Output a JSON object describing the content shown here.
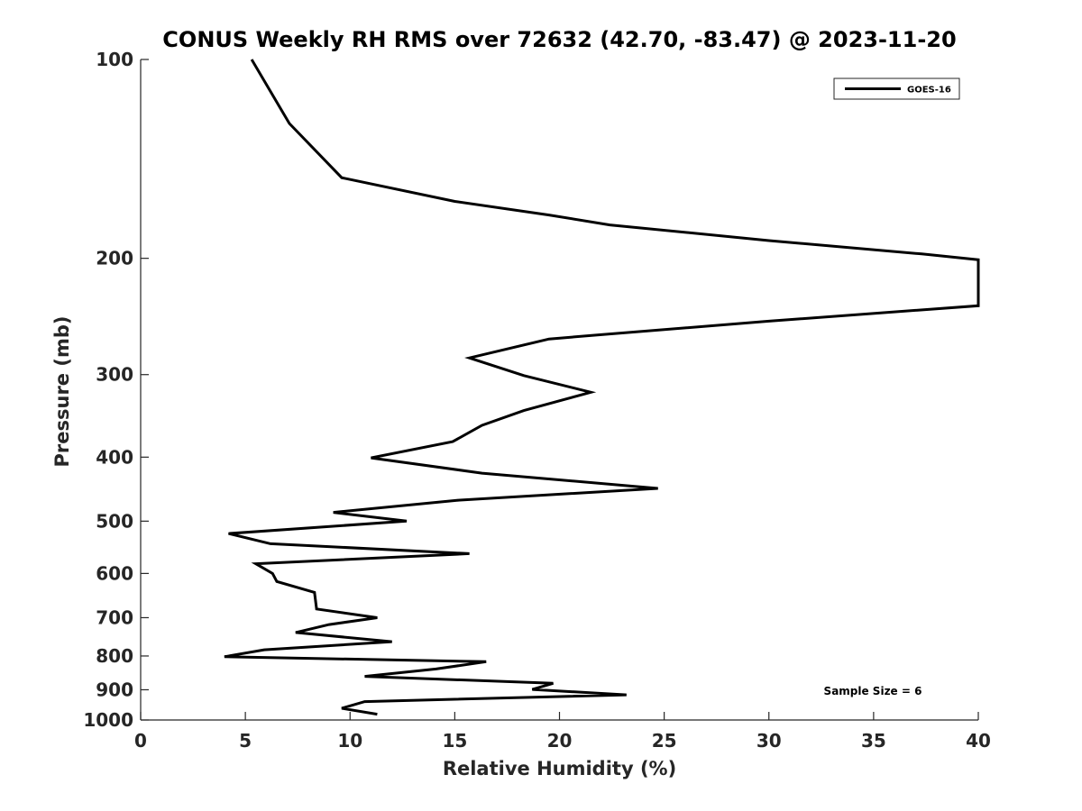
{
  "chart_data": {
    "type": "line",
    "title": "CONUS Weekly RH RMS over 72632 (42.70, -83.47) @ 2023-11-20",
    "xlabel": "Relative Humidity (%)",
    "ylabel": "Pressure (mb)",
    "xlim": [
      0,
      40
    ],
    "ylim": [
      100,
      1000
    ],
    "y_scale": "log",
    "y_reversed": true,
    "grid": false,
    "legend_position": "top-right",
    "x_ticks": [
      "0",
      "5",
      "10",
      "15",
      "20",
      "25",
      "30",
      "35",
      "40"
    ],
    "y_ticks": [
      "100",
      "200",
      "300",
      "400",
      "500",
      "600",
      "700",
      "800",
      "900",
      "1000"
    ],
    "series": [
      {
        "name": "GOES-16",
        "color": "#000000",
        "points": [
          [
            5.3,
            100
          ],
          [
            7.1,
            125
          ],
          [
            9.6,
            151
          ],
          [
            15,
            164
          ],
          [
            19.5,
            172
          ],
          [
            22.4,
            178
          ],
          [
            30,
            188
          ],
          [
            37.3,
            197
          ],
          [
            40,
            201
          ],
          [
            40,
            236
          ],
          [
            30,
            249
          ],
          [
            22,
            261
          ],
          [
            19.5,
            265
          ],
          [
            15.7,
            283
          ],
          [
            18.3,
            301
          ],
          [
            21.5,
            319
          ],
          [
            18.3,
            340
          ],
          [
            16.3,
            358
          ],
          [
            14.9,
            379
          ],
          [
            11,
            401
          ],
          [
            16.3,
            423
          ],
          [
            24.7,
            446
          ],
          [
            15.1,
            465
          ],
          [
            9.2,
            485
          ],
          [
            12.7,
            500
          ],
          [
            4.2,
            522
          ],
          [
            6.2,
            541
          ],
          [
            15.7,
            560
          ],
          [
            5.5,
            580
          ],
          [
            6.3,
            600
          ],
          [
            6.5,
            617
          ],
          [
            8.3,
            641
          ],
          [
            8.4,
            679
          ],
          [
            11.3,
            700
          ],
          [
            9,
            717
          ],
          [
            7.4,
            737
          ],
          [
            12,
            761
          ],
          [
            5.9,
            783
          ],
          [
            4.0,
            802
          ],
          [
            16.5,
            816
          ],
          [
            14.1,
            837
          ],
          [
            10.7,
            859
          ],
          [
            19.7,
            880
          ],
          [
            18.7,
            899
          ],
          [
            23.2,
            916
          ],
          [
            10.7,
            938
          ],
          [
            9.6,
            960
          ],
          [
            11.3,
            980
          ]
        ]
      }
    ],
    "annotations": [
      "Sample Size = 6"
    ]
  }
}
